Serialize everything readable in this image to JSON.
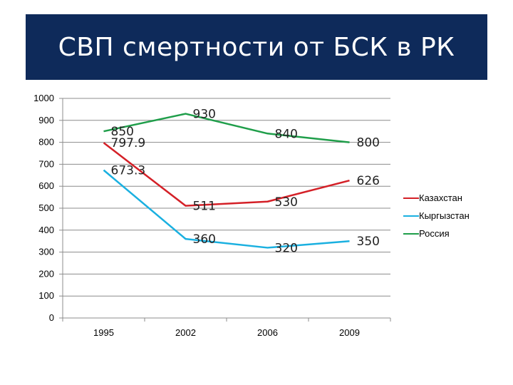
{
  "header": {
    "title": "СВП смертности от БСК в РК"
  },
  "chart_data": {
    "type": "line",
    "title": "СВП смертности от БСК в РК",
    "xlabel": "",
    "ylabel": "",
    "categories": [
      "1995",
      "2002",
      "2006",
      "2009"
    ],
    "ylim": [
      0,
      1000
    ],
    "yticks": [
      0,
      100,
      200,
      300,
      400,
      500,
      600,
      700,
      800,
      900,
      1000
    ],
    "grid": true,
    "legend": "right",
    "series": [
      {
        "name": "Казахстан",
        "color": "#d42027",
        "values": [
          797.9,
          511,
          530,
          626
        ],
        "labels": [
          "797.9",
          "511",
          "530",
          "626"
        ]
      },
      {
        "name": "Кыргызстан",
        "color": "#1ab0e0",
        "values": [
          673.3,
          360,
          320,
          350
        ],
        "labels": [
          "673.3",
          "360",
          "320",
          "350"
        ]
      },
      {
        "name": "Россия",
        "color": "#1f9e4a",
        "values": [
          850,
          930,
          840,
          800
        ],
        "labels": [
          "850",
          "930",
          "840",
          "800"
        ]
      }
    ]
  }
}
